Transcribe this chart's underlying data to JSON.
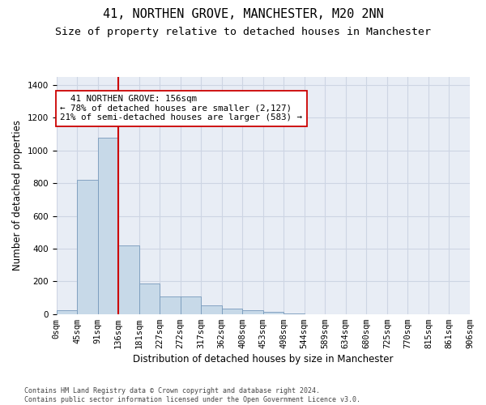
{
  "title": "41, NORTHEN GROVE, MANCHESTER, M20 2NN",
  "subtitle": "Size of property relative to detached houses in Manchester",
  "xlabel": "Distribution of detached houses by size in Manchester",
  "ylabel": "Number of detached properties",
  "footnote": "Contains HM Land Registry data © Crown copyright and database right 2024.\nContains public sector information licensed under the Open Government Licence v3.0.",
  "bar_values": [
    25,
    820,
    1080,
    420,
    185,
    105,
    105,
    55,
    35,
    25,
    15,
    5,
    0,
    0,
    0,
    0,
    0,
    0,
    0,
    0
  ],
  "bin_labels": [
    "0sqm",
    "45sqm",
    "91sqm",
    "136sqm",
    "181sqm",
    "227sqm",
    "272sqm",
    "317sqm",
    "362sqm",
    "408sqm",
    "453sqm",
    "498sqm",
    "544sqm",
    "589sqm",
    "634sqm",
    "680sqm",
    "725sqm",
    "770sqm",
    "815sqm",
    "861sqm",
    "906sqm"
  ],
  "bar_color": "#c7d9e8",
  "bar_edge_color": "#7799bb",
  "vline_x": 3,
  "vline_color": "#cc0000",
  "annotation_text": "  41 NORTHEN GROVE: 156sqm\n← 78% of detached houses are smaller (2,127)\n21% of semi-detached houses are larger (583) →",
  "annotation_box_color": "#ffffff",
  "annotation_box_edge": "#cc0000",
  "ylim": [
    0,
    1450
  ],
  "yticks": [
    0,
    200,
    400,
    600,
    800,
    1000,
    1200,
    1400
  ],
  "grid_color": "#cdd5e3",
  "background_color": "#e8edf5",
  "title_fontsize": 11,
  "subtitle_fontsize": 9.5,
  "axis_label_fontsize": 8.5,
  "tick_fontsize": 7.5,
  "annotation_fontsize": 7.8,
  "footnote_fontsize": 6.0
}
